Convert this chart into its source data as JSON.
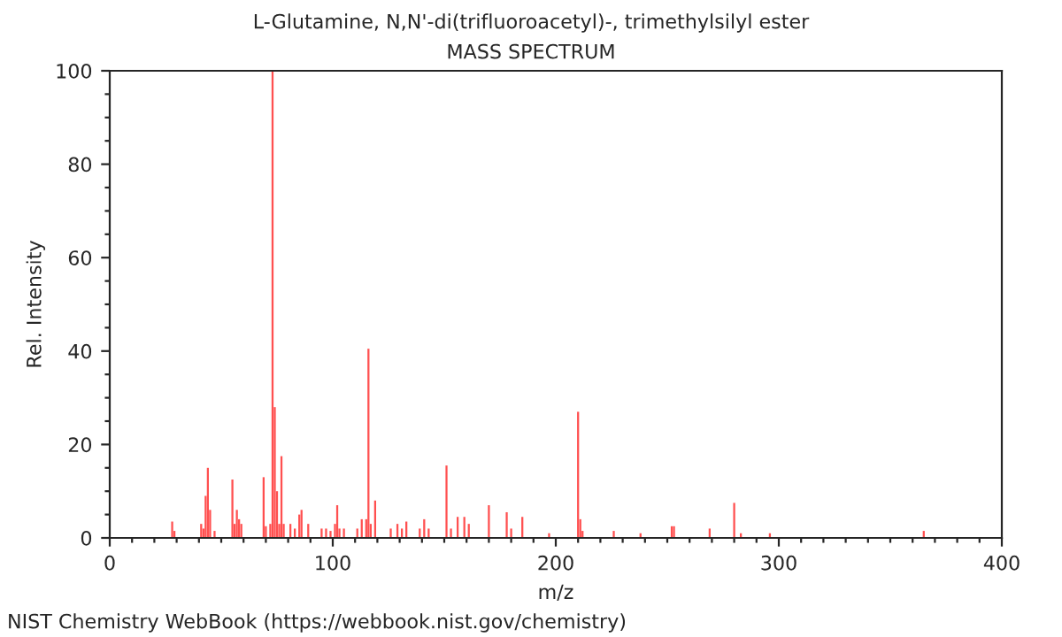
{
  "chart_data": {
    "type": "bar",
    "title": "L-Glutamine, N,N'-di(trifluoroacetyl)-, trimethylsilyl ester",
    "subtitle": "MASS SPECTRUM",
    "xlabel": "m/z",
    "ylabel": "Rel. Intensity",
    "annotations": [
      "NIST Chemistry WebBook (https://webbook.nist.gov/chemistry)"
    ],
    "x": [
      28,
      29,
      41,
      42,
      43,
      44,
      45,
      47,
      55,
      56,
      57,
      58,
      59,
      69,
      70,
      72,
      73,
      74,
      75,
      76,
      77,
      78,
      81,
      83,
      85,
      86,
      89,
      95,
      97,
      99,
      101,
      102,
      103,
      105,
      111,
      113,
      115,
      116,
      117,
      119,
      126,
      129,
      131,
      133,
      139,
      141,
      143,
      151,
      153,
      156,
      159,
      161,
      170,
      178,
      180,
      185,
      197,
      210,
      211,
      212,
      226,
      238,
      252,
      253,
      269,
      280,
      283,
      296,
      365
    ],
    "series": [
      {
        "color": "#ff5050",
        "values": [
          3.5,
          1.5,
          3,
          2,
          9,
          15,
          6,
          1.5,
          12.5,
          3,
          6,
          4,
          3,
          13,
          2.5,
          3,
          100,
          28,
          10,
          3,
          17.5,
          3,
          3,
          2,
          5,
          6,
          3,
          2,
          2,
          1.5,
          3,
          7,
          2,
          2,
          2,
          4,
          4,
          40.5,
          3,
          8,
          2,
          3,
          2,
          3.5,
          2,
          4,
          2,
          15.5,
          2,
          4.5,
          4.5,
          3,
          7,
          5.5,
          2,
          4.5,
          1,
          27,
          4,
          1.5,
          1.5,
          1,
          2.5,
          2.5,
          2,
          7.5,
          1,
          1,
          1.5
        ]
      }
    ],
    "xlim": [
      0,
      400
    ],
    "ylim": [
      0,
      100
    ],
    "xticks": [
      0,
      {
        "value": 10,
        "label": null
      },
      {
        "value": 20,
        "label": null
      },
      {
        "value": 30,
        "label": null
      },
      {
        "value": 40,
        "label": null
      },
      {
        "value": 50,
        "label": null
      },
      {
        "value": 60,
        "label": null
      },
      {
        "value": 70,
        "label": null
      },
      {
        "value": 80,
        "label": null
      },
      {
        "value": 90,
        "label": null
      },
      100,
      {
        "value": 110,
        "label": null
      },
      {
        "value": 120,
        "label": null
      },
      {
        "value": 130,
        "label": null
      },
      {
        "value": 140,
        "label": null
      },
      {
        "value": 150,
        "label": null
      },
      {
        "value": 160,
        "label": null
      },
      {
        "value": 170,
        "label": null
      },
      {
        "value": 180,
        "label": null
      },
      {
        "value": 190,
        "label": null
      },
      200,
      {
        "value": 210,
        "label": null
      },
      {
        "value": 220,
        "label": null
      },
      {
        "value": 230,
        "label": null
      },
      {
        "value": 240,
        "label": null
      },
      {
        "value": 250,
        "label": null
      },
      {
        "value": 260,
        "label": null
      },
      {
        "value": 270,
        "label": null
      },
      {
        "value": 280,
        "label": null
      },
      {
        "value": 290,
        "label": null
      },
      300,
      {
        "value": 310,
        "label": null
      },
      {
        "value": 320,
        "label": null
      },
      {
        "value": 330,
        "label": null
      },
      {
        "value": 340,
        "label": null
      },
      {
        "value": 350,
        "label": null
      },
      {
        "value": 360,
        "label": null
      },
      {
        "value": 370,
        "label": null
      },
      {
        "value": 380,
        "label": null
      },
      {
        "value": 390,
        "label": null
      },
      400
    ],
    "yticks": [
      0,
      {
        "value": 5,
        "label": null
      },
      {
        "value": 10,
        "label": null
      },
      {
        "value": 15,
        "label": null
      },
      20,
      {
        "value": 25,
        "label": null
      },
      {
        "value": 30,
        "label": null
      },
      {
        "value": 35,
        "label": null
      },
      40,
      {
        "value": 45,
        "label": null
      },
      {
        "value": 50,
        "label": null
      },
      {
        "value": 55,
        "label": null
      },
      60,
      {
        "value": 65,
        "label": null
      },
      {
        "value": 70,
        "label": null
      },
      {
        "value": 75,
        "label": null
      },
      80,
      {
        "value": 85,
        "label": null
      },
      {
        "value": 90,
        "label": null
      },
      {
        "value": 95,
        "label": null
      },
      100
    ],
    "grid": false,
    "legend": false
  }
}
